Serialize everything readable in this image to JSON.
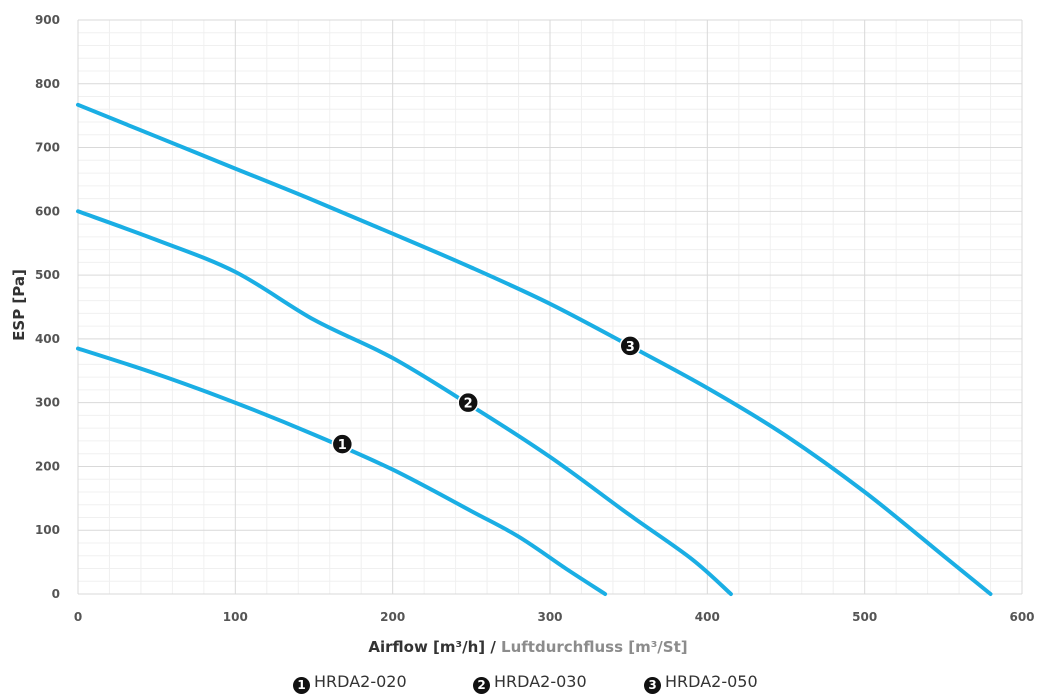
{
  "chart_data": {
    "type": "line",
    "xlabel_main": "Airflow [m³/h] / ",
    "xlabel_secondary": "Luftdurchfluss [m³/St]",
    "ylabel": "ESP [Pa]",
    "xlim": [
      0,
      600
    ],
    "ylim": [
      0,
      900
    ],
    "x_ticks": [
      "0",
      "100",
      "200",
      "300",
      "400",
      "500",
      "600"
    ],
    "y_ticks": [
      "0",
      "100",
      "200",
      "300",
      "400",
      "500",
      "600",
      "700",
      "800",
      "900"
    ],
    "grid": true,
    "line_color": "#1aaee4",
    "series": [
      {
        "name": "HRDA2-020",
        "marker": "1",
        "marker_at": [
          168,
          235
        ],
        "points": [
          [
            0,
            385
          ],
          [
            50,
            345
          ],
          [
            100,
            300
          ],
          [
            150,
            250
          ],
          [
            200,
            195
          ],
          [
            250,
            130
          ],
          [
            280,
            90
          ],
          [
            310,
            40
          ],
          [
            335,
            0
          ]
        ]
      },
      {
        "name": "HRDA2-030",
        "marker": "2",
        "marker_at": [
          248,
          300
        ],
        "points": [
          [
            0,
            600
          ],
          [
            50,
            555
          ],
          [
            100,
            505
          ],
          [
            150,
            430
          ],
          [
            200,
            370
          ],
          [
            250,
            295
          ],
          [
            300,
            215
          ],
          [
            350,
            125
          ],
          [
            390,
            55
          ],
          [
            415,
            0
          ]
        ]
      },
      {
        "name": "HRDA2-050",
        "marker": "3",
        "marker_at": [
          351,
          389
        ],
        "points": [
          [
            0,
            767
          ],
          [
            50,
            717
          ],
          [
            100,
            667
          ],
          [
            150,
            617
          ],
          [
            200,
            565
          ],
          [
            250,
            512
          ],
          [
            300,
            455
          ],
          [
            350,
            390
          ],
          [
            400,
            323
          ],
          [
            450,
            248
          ],
          [
            500,
            160
          ],
          [
            550,
            60
          ],
          [
            580,
            0
          ]
        ]
      }
    ]
  }
}
